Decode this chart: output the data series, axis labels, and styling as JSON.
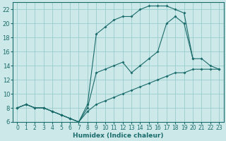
{
  "xlabel": "Humidex (Indice chaleur)",
  "bg_color": "#cce8e8",
  "grid_color": "#99cccc",
  "line_color": "#1a6b6b",
  "xlim": [
    -0.5,
    23.5
  ],
  "ylim": [
    6,
    23
  ],
  "xticks": [
    0,
    1,
    2,
    3,
    4,
    5,
    6,
    7,
    8,
    9,
    10,
    11,
    12,
    13,
    14,
    15,
    16,
    17,
    18,
    19,
    20,
    21,
    22,
    23
  ],
  "yticks": [
    6,
    8,
    10,
    12,
    14,
    16,
    18,
    20,
    22
  ],
  "line_upper_x": [
    0,
    1,
    2,
    3,
    4,
    5,
    6,
    7,
    8,
    9,
    10,
    11,
    12,
    13,
    14,
    15,
    16,
    17,
    18,
    19,
    20
  ],
  "line_upper_y": [
    8,
    8.5,
    8,
    8,
    7.5,
    7,
    6.5,
    6,
    8.5,
    18.5,
    19.5,
    20.5,
    21,
    21,
    22,
    22.5,
    22.5,
    22.5,
    22,
    21.5,
    15
  ],
  "line_mid_x": [
    0,
    1,
    2,
    3,
    4,
    5,
    6,
    7,
    8,
    9,
    10,
    11,
    12,
    13,
    14,
    15,
    16,
    17,
    18,
    19,
    20,
    21,
    22,
    23
  ],
  "line_mid_y": [
    8,
    8.5,
    8,
    8,
    7.5,
    7,
    6.5,
    6,
    8,
    13,
    13.5,
    14,
    14.5,
    13,
    14,
    15,
    16,
    20,
    21,
    20,
    15,
    15,
    14,
    13.5
  ],
  "line_lower_x": [
    0,
    1,
    2,
    3,
    4,
    5,
    6,
    7,
    8,
    9,
    10,
    11,
    12,
    13,
    14,
    15,
    16,
    17,
    18,
    19,
    20,
    21,
    22,
    23
  ],
  "line_lower_y": [
    8,
    8.5,
    8,
    8,
    7.5,
    7,
    6.5,
    6,
    7.5,
    8.5,
    9,
    9.5,
    10,
    10.5,
    11,
    11.5,
    12,
    12.5,
    13,
    13,
    13.5,
    13.5,
    13.5,
    13.5
  ]
}
